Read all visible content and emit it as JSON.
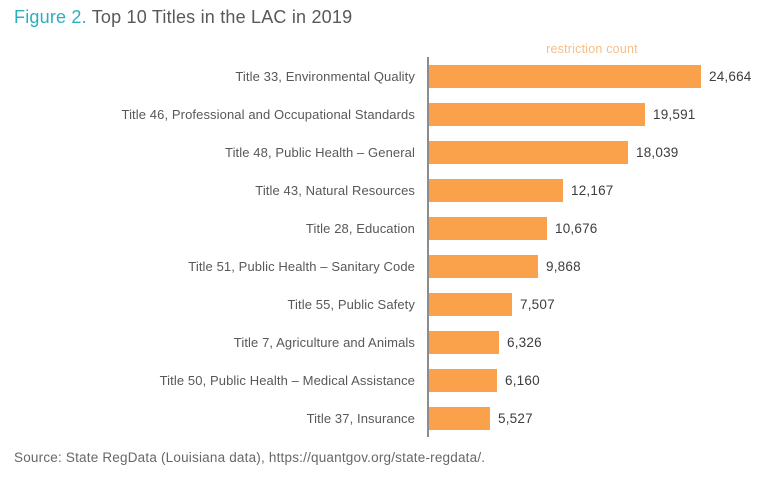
{
  "title": {
    "figure_label": "Figure 2.",
    "text": " Top 10 Titles in the LAC in 2019"
  },
  "colors": {
    "figure_label_teal": "#2BAEC1",
    "title_gray": "#58595B",
    "bar_orange": "#F9A24B",
    "axis_label_orange": "#F6BE87",
    "category_label_gray": "#58585A",
    "value_label_dark": "#3C3D3F",
    "source_gray": "#66676A",
    "axis_line_gray": "#8C8C8E"
  },
  "chart_data": {
    "type": "bar",
    "orientation": "horizontal",
    "title": "Figure 2. Top 10 Titles in the LAC in 2019",
    "xlabel": "restriction count",
    "ylabel": "",
    "xlim": [
      0,
      27000
    ],
    "grid": false,
    "categories": [
      "Title 33, Environmental Quality",
      "Title 46, Professional and Occupational Standards",
      "Title 48, Public Health – General",
      "Title 43, Natural Resources",
      "Title 28, Education",
      "Title 51, Public Health – Sanitary Code",
      "Title 55, Public Safety",
      "Title 7, Agriculture and Animals",
      "Title 50, Public Health – Medical Assistance",
      "Title 37, Insurance"
    ],
    "values": [
      24664,
      19591,
      18039,
      12167,
      10676,
      9868,
      7507,
      6326,
      6160,
      5527
    ],
    "value_labels": [
      "24,664",
      "19,591",
      "18,039",
      "12,167",
      "10,676",
      "9,868",
      "7,507",
      "6,326",
      "6,160",
      "5,527"
    ]
  },
  "source": "Source: State RegData (Louisiana data), https://quantgov.org/state-regdata/."
}
